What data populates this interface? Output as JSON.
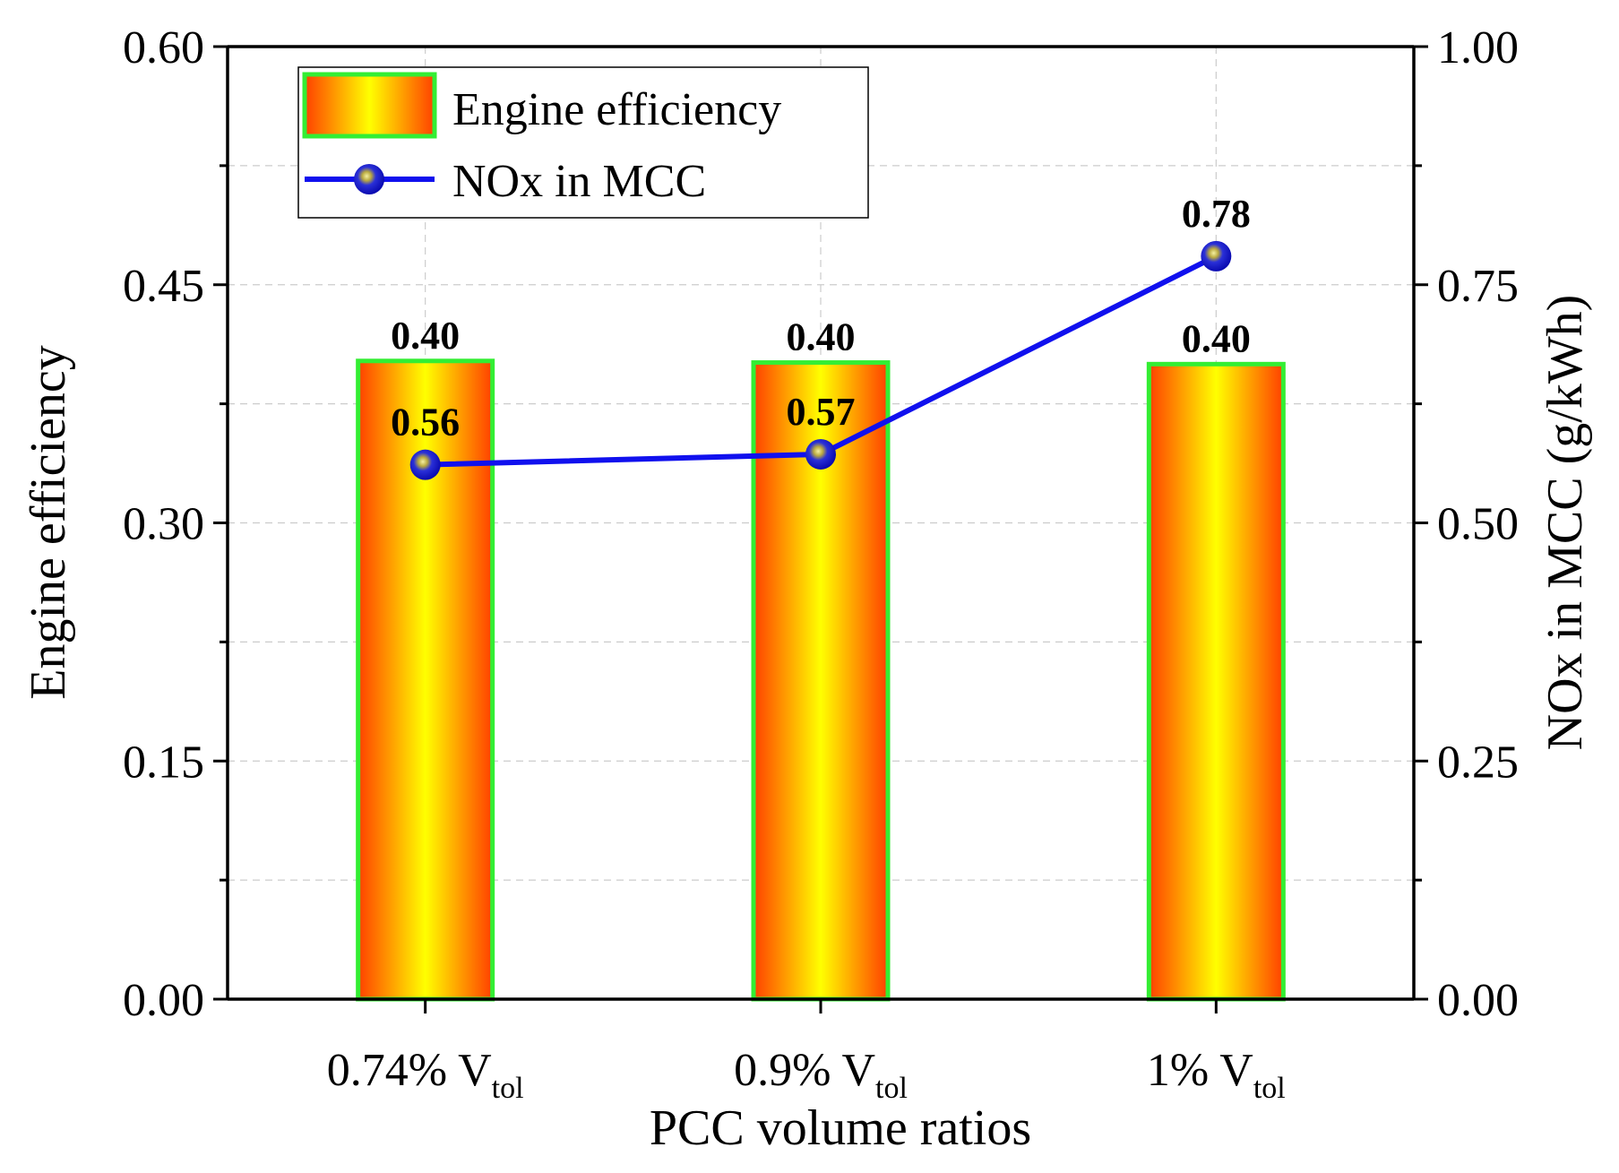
{
  "chart_data": {
    "type": "bar+line",
    "categories": [
      "0.74% V",
      "0.9% V",
      "1% V"
    ],
    "category_subscripts": [
      "tol",
      "tol",
      "tol"
    ],
    "xlabel": "PCC volume ratios",
    "ylabel_left": "Engine efficiency",
    "ylabel_right": "NOx in MCC (g/kWh)",
    "ylim_left": [
      0,
      0.6
    ],
    "ylim_right": [
      0,
      1.0
    ],
    "yticks_left": [
      0.0,
      0.15,
      0.3,
      0.45,
      0.6
    ],
    "yticks_left_labels": [
      "0.00",
      "0.15",
      "0.30",
      "0.45",
      "0.60"
    ],
    "yticks_right": [
      0.0,
      0.25,
      0.5,
      0.75,
      1.0
    ],
    "yticks_right_labels": [
      "0.00",
      "0.25",
      "0.50",
      "0.75",
      "1.00"
    ],
    "grid": true,
    "legend_position": "top-left",
    "series": [
      {
        "name": "Engine efficiency",
        "kind": "bar",
        "axis": "left",
        "values": [
          0.402,
          0.401,
          0.4
        ],
        "labels": [
          "0.40",
          "0.40",
          "0.40"
        ],
        "fill_colors": [
          "#ff4000",
          "#ffff00"
        ],
        "border_color": "#33ee33"
      },
      {
        "name": "NOx in MCC",
        "kind": "line",
        "axis": "right",
        "values": [
          0.561,
          0.572,
          0.78
        ],
        "labels": [
          "0.56",
          "0.57",
          "0.78"
        ],
        "line_color": "#1010ee",
        "marker_color": "#1010ee"
      }
    ]
  }
}
